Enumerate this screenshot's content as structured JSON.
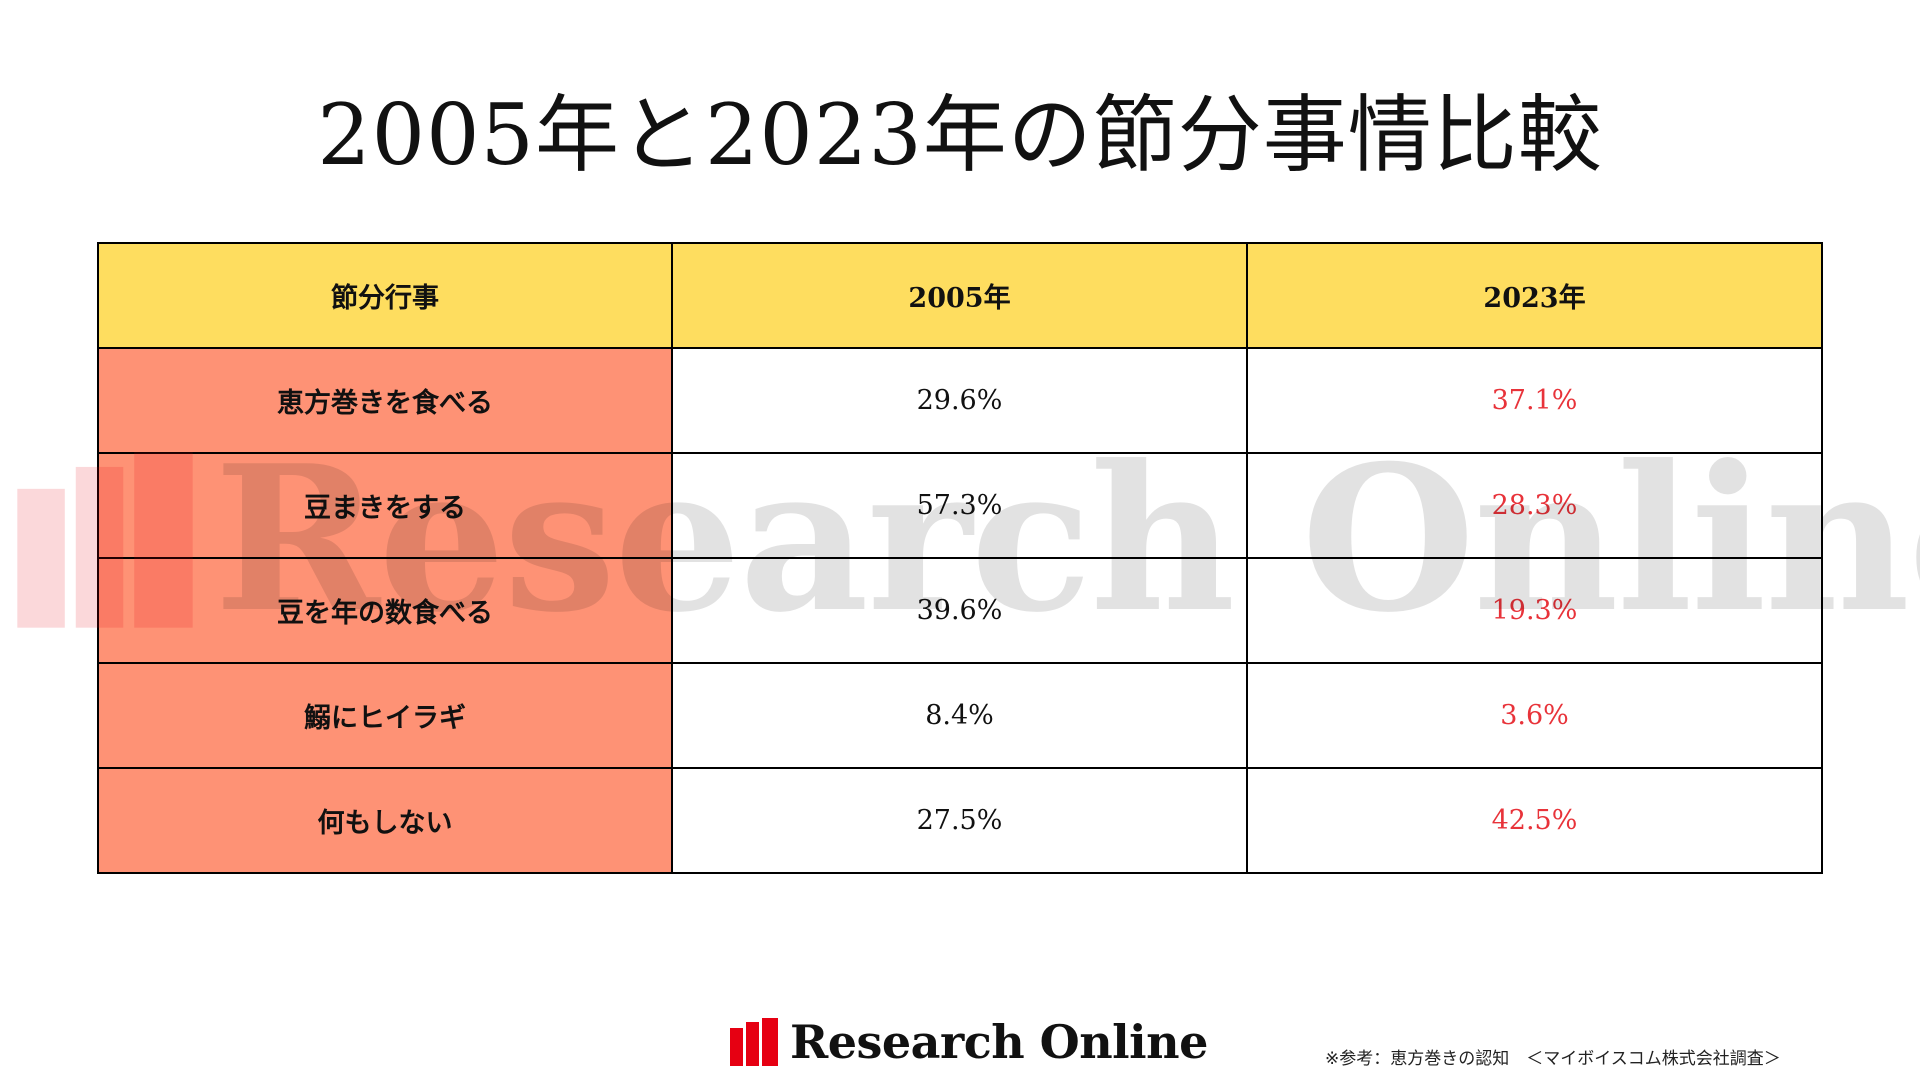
{
  "title": "2005年と2023年の節分事情比較",
  "colors": {
    "header_bg": "#fedd5f",
    "label_bg": "#fe9275",
    "value_2023": "#e8333a",
    "logo_red": "#e60012"
  },
  "watermark_text": "Research Online",
  "brand_name": "Research Online",
  "source_note": "※参考：恵方巻きの認知　＜マイボイスコム株式会社調査＞",
  "chart_data": {
    "type": "table",
    "columns": [
      "節分行事",
      "2005年",
      "2023年"
    ],
    "rows": [
      {
        "label": "恵方巻きを食べる",
        "v2005": "29.6%",
        "v2023": "37.1%"
      },
      {
        "label": "豆まきをする",
        "v2005": "57.3%",
        "v2023": "28.3%"
      },
      {
        "label": "豆を年の数食べる",
        "v2005": "39.6%",
        "v2023": "19.3%"
      },
      {
        "label": "鰯にヒイラギ",
        "v2005": "8.4%",
        "v2023": "3.6%"
      },
      {
        "label": "何もしない",
        "v2005": "27.5%",
        "v2023": "42.5%"
      }
    ]
  }
}
